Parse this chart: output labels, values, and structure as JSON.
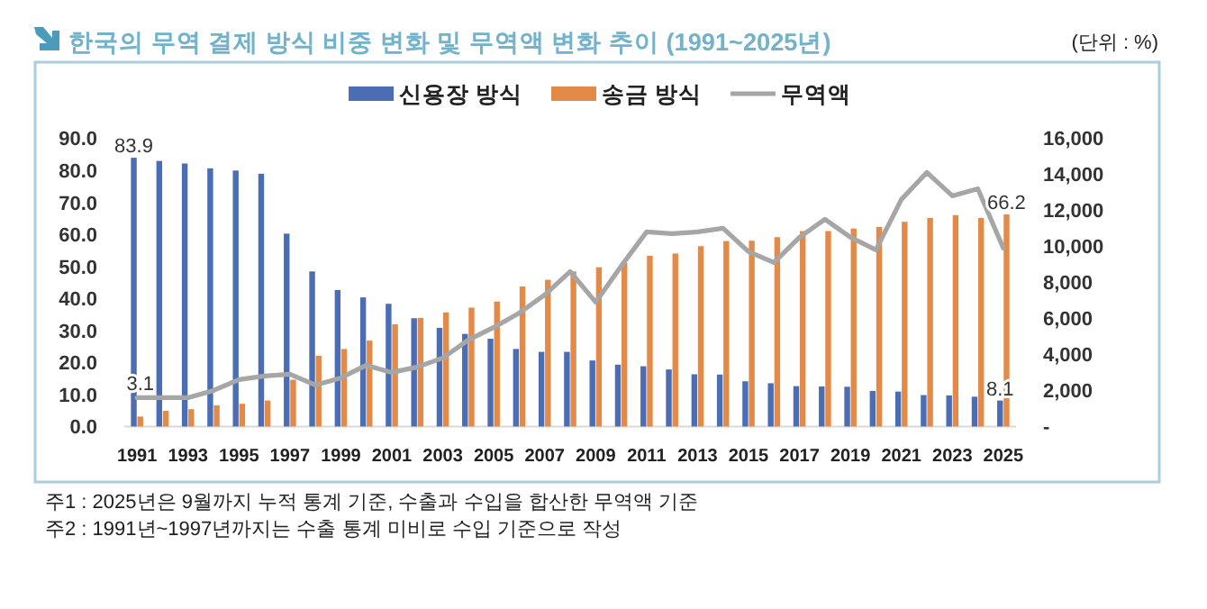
{
  "chart_data": {
    "type": "bar",
    "title": "한국의 무역 결제 방식 비중 변화 및 무역액 변화 추이 (1991~2025년)",
    "subtitle": "(단위 : %)",
    "annotations": [
      "주1 : 2025년은 9월까지 누적 통계 기준, 수출과 수입을 합산한 무역액 기준",
      "주2 : 1991년~1997년까지는 수출 통계 미비로 수입 기준으로 작성"
    ],
    "categories": [
      "1991",
      null,
      "1993",
      null,
      "1995",
      null,
      "1997",
      null,
      "1999",
      null,
      "2001",
      null,
      "2003",
      null,
      "2005",
      null,
      "2007",
      null,
      "2009",
      null,
      "2011",
      null,
      "2013",
      null,
      "2015",
      null,
      "2017",
      null,
      "2019",
      null,
      "2021",
      null,
      "2023",
      null,
      "2025"
    ],
    "series": [
      {
        "name": "신용장 방식",
        "color": "#4a6db3",
        "values": [
          83.9,
          82.9,
          82.1,
          80.6,
          79.9,
          78.9,
          60.2,
          48.4,
          42.6,
          40.3,
          38.3,
          33.8,
          30.8,
          28.9,
          27.4,
          24.2,
          23.3,
          23.3,
          20.6,
          19.3,
          18.8,
          17.8,
          16.3,
          16.2,
          14.1,
          13.5,
          12.6,
          12.5,
          12.4,
          11.1,
          10.9,
          9.8,
          9.7,
          9.3,
          8.1
        ],
        "value_labels": [
          "83.9",
          null,
          null,
          null,
          null,
          null,
          null,
          null,
          null,
          null,
          null,
          null,
          null,
          null,
          null,
          null,
          null,
          null,
          null,
          null,
          null,
          null,
          null,
          null,
          null,
          null,
          null,
          null,
          null,
          null,
          null,
          null,
          null,
          null,
          "8.1"
        ]
      },
      {
        "name": "송금 방식",
        "color": "#e38a49",
        "values": [
          3.1,
          4.9,
          5.4,
          6.6,
          7.1,
          8.1,
          14.6,
          22.1,
          24.2,
          26.8,
          31.9,
          33.9,
          35.6,
          37.1,
          39.0,
          43.7,
          45.8,
          48.4,
          49.7,
          51.0,
          53.3,
          54.0,
          56.3,
          57.9,
          58.0,
          59.1,
          61.0,
          61.0,
          61.8,
          62.3,
          63.9,
          65.1,
          66.0,
          65.1,
          66.2
        ],
        "value_labels": [
          "3.1",
          null,
          null,
          null,
          null,
          null,
          null,
          null,
          null,
          null,
          null,
          null,
          null,
          null,
          null,
          null,
          null,
          null,
          null,
          null,
          null,
          null,
          null,
          null,
          null,
          null,
          null,
          null,
          null,
          null,
          null,
          null,
          null,
          null,
          "66.2"
        ]
      },
      {
        "name": "무역액",
        "type": "line",
        "axis": "y2",
        "color": "#a6a6a6",
        "values": [
          1600,
          1600,
          1600,
          2000,
          2600,
          2800,
          2900,
          2300,
          2700,
          3400,
          3000,
          3300,
          3800,
          4800,
          5500,
          6300,
          7300,
          8600,
          6900,
          8900,
          10800,
          10700,
          10800,
          11000,
          9700,
          9100,
          10500,
          11500,
          10500,
          9800,
          12600,
          14100,
          12800,
          13200,
          9900
        ]
      }
    ],
    "ylim": [
      0,
      90
    ],
    "yticks": [
      {
        "value": 0,
        "label": "0.0"
      },
      {
        "value": 10,
        "label": "10.0"
      },
      {
        "value": 20,
        "label": "20.0"
      },
      {
        "value": 30,
        "label": "30.0"
      },
      {
        "value": 40,
        "label": "40.0"
      },
      {
        "value": 50,
        "label": "50.0"
      },
      {
        "value": 60,
        "label": "60.0"
      },
      {
        "value": 70,
        "label": "70.0"
      },
      {
        "value": 80,
        "label": "80.0"
      },
      {
        "value": 90,
        "label": "90.0"
      }
    ],
    "y2lim": [
      0,
      16000
    ],
    "y2ticks": [
      {
        "value": 0,
        "label": "-"
      },
      {
        "value": 2000,
        "label": "2,000"
      },
      {
        "value": 4000,
        "label": "4,000"
      },
      {
        "value": 6000,
        "label": "6,000"
      },
      {
        "value": 8000,
        "label": "8,000"
      },
      {
        "value": 10000,
        "label": "10,000"
      },
      {
        "value": 12000,
        "label": "12,000"
      },
      {
        "value": 14000,
        "label": "14,000"
      },
      {
        "value": 16000,
        "label": "16,000"
      }
    ],
    "legend": "top"
  }
}
